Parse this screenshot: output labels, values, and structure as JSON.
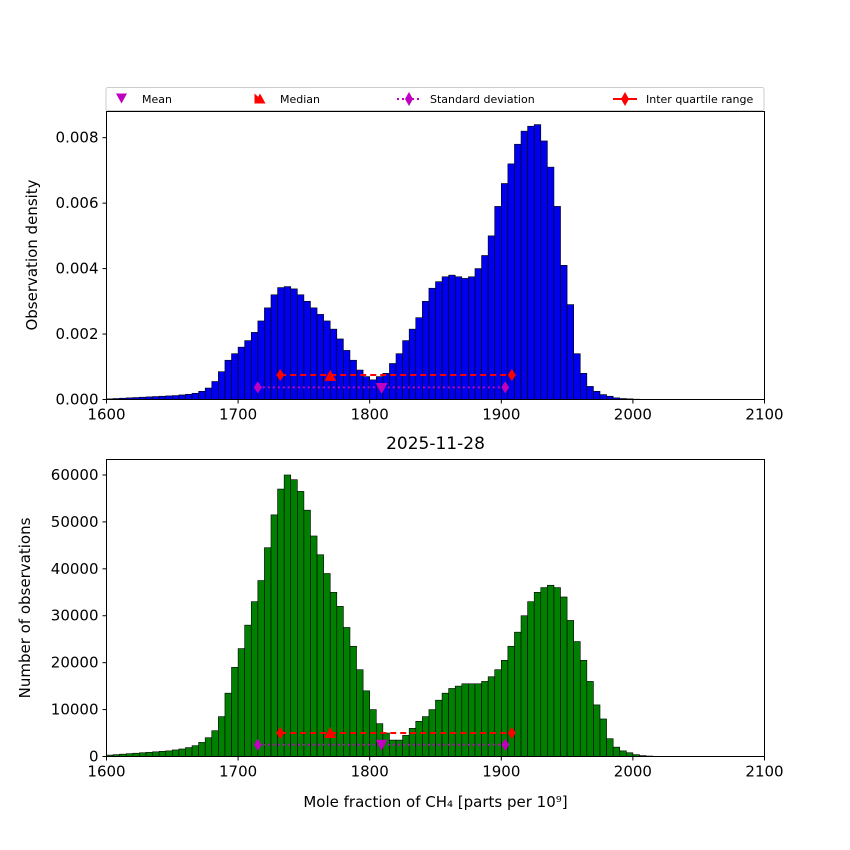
{
  "figure": {
    "background": "#ffffff"
  },
  "legend": {
    "location": "above-top-panel",
    "items": [
      {
        "label": "Mean",
        "marker": "triangle-down",
        "color": "#bf00bf"
      },
      {
        "label": "Median",
        "marker": "triangle-up",
        "color": "#ff0000"
      },
      {
        "label": "Standard deviation",
        "marker": "diamond",
        "line": "dotted",
        "color": "#bf00bf"
      },
      {
        "label": "Inter quartile range",
        "marker": "diamond",
        "line": "solid",
        "color": "#ff0000"
      }
    ]
  },
  "chart_data": [
    {
      "type": "bar",
      "xlabel": "",
      "ylabel": "Observation density",
      "xlim": [
        1600,
        2100
      ],
      "ylim": [
        0,
        0.0088
      ],
      "xticks": [
        1600,
        1700,
        1800,
        1900,
        2000,
        2100
      ],
      "yticks": [
        0.0,
        0.002,
        0.004,
        0.006,
        0.008
      ],
      "ytick_labels": [
        "0.000",
        "0.002",
        "0.004",
        "0.006",
        "0.008"
      ],
      "grid": false,
      "bar_color": "#0000ee",
      "edge_color": "#000000",
      "bin_start": 1600,
      "bin_width": 5,
      "values": [
        2e-05,
        3e-05,
        4e-05,
        5e-05,
        6e-05,
        7e-05,
        8e-05,
        9e-05,
        0.0001,
        0.00011,
        0.00012,
        0.00014,
        0.00016,
        0.00019,
        0.00025,
        0.00035,
        0.00055,
        0.00085,
        0.0012,
        0.0014,
        0.0016,
        0.0018,
        0.00205,
        0.0024,
        0.0028,
        0.0032,
        0.00342,
        0.00345,
        0.00338,
        0.0032,
        0.003,
        0.0028,
        0.0026,
        0.0024,
        0.00215,
        0.00185,
        0.0015,
        0.0012,
        0.0009,
        0.0007,
        0.0006,
        0.0007,
        0.0008,
        0.0011,
        0.0014,
        0.0018,
        0.00215,
        0.0025,
        0.003,
        0.0034,
        0.0036,
        0.00375,
        0.0038,
        0.00375,
        0.0037,
        0.00375,
        0.004,
        0.0044,
        0.005,
        0.0059,
        0.0066,
        0.0072,
        0.0078,
        0.0082,
        0.00835,
        0.0084,
        0.0079,
        0.0071,
        0.0059,
        0.0041,
        0.0029,
        0.0014,
        0.0008,
        0.0004,
        0.00025,
        0.00015,
        0.0001,
        5e-05,
        3e-05,
        2e-05,
        1e-05,
        5e-06,
        0,
        0,
        0,
        0,
        0,
        0,
        0,
        0,
        0,
        0,
        0,
        0,
        0,
        0,
        0,
        0,
        0,
        0
      ],
      "statistics": {
        "mean": {
          "x": 1809,
          "y": 0.00035
        },
        "median": {
          "x": 1770,
          "y": 0.00072
        },
        "standard_deviation": {
          "x": [
            1715,
            1903
          ],
          "y": 0.00037
        },
        "inter_quartile_range": {
          "x": [
            1732,
            1908
          ],
          "y": 0.00075
        }
      }
    },
    {
      "type": "bar",
      "title": "2025-11-28",
      "xlabel": "Mole fraction of CH₄ [parts per 10⁹]",
      "ylabel": "Number of observations",
      "xlim": [
        1600,
        2100
      ],
      "ylim": [
        0,
        63300
      ],
      "xticks": [
        1600,
        1700,
        1800,
        1900,
        2000,
        2100
      ],
      "yticks": [
        0,
        10000,
        20000,
        30000,
        40000,
        50000,
        60000
      ],
      "ytick_labels": [
        "0",
        "10000",
        "20000",
        "30000",
        "40000",
        "50000",
        "60000"
      ],
      "grid": false,
      "bar_color": "#007f00",
      "edge_color": "#000000",
      "bin_start": 1600,
      "bin_width": 5,
      "values": [
        300,
        400,
        500,
        600,
        700,
        800,
        900,
        1000,
        1100,
        1200,
        1400,
        1600,
        1900,
        2300,
        3000,
        4000,
        5500,
        8500,
        13500,
        19000,
        23000,
        28000,
        33000,
        37500,
        44500,
        51500,
        57000,
        60000,
        59000,
        56500,
        52500,
        47000,
        43000,
        39000,
        35000,
        32000,
        27500,
        23500,
        18500,
        14000,
        10000,
        7000,
        5000,
        3500,
        3500,
        4500,
        6000,
        7500,
        8500,
        10000,
        12000,
        13500,
        14500,
        15000,
        15500,
        15500,
        15500,
        16000,
        17000,
        18500,
        20500,
        23500,
        26500,
        30000,
        33000,
        35000,
        36000,
        36500,
        36000,
        34000,
        29000,
        24500,
        20500,
        16000,
        11000,
        8000,
        3800,
        2000,
        1200,
        800,
        400,
        200,
        100,
        50,
        0,
        0,
        0,
        0,
        0,
        0,
        0,
        0,
        0,
        0,
        0,
        0,
        0,
        0,
        0,
        0
      ],
      "statistics": {
        "mean": {
          "x": 1809,
          "y": 2500
        },
        "median": {
          "x": 1770,
          "y": 5000
        },
        "standard_deviation": {
          "x": [
            1715,
            1903
          ],
          "y": 2500
        },
        "inter_quartile_range": {
          "x": [
            1732,
            1908
          ],
          "y": 5000
        }
      }
    }
  ]
}
